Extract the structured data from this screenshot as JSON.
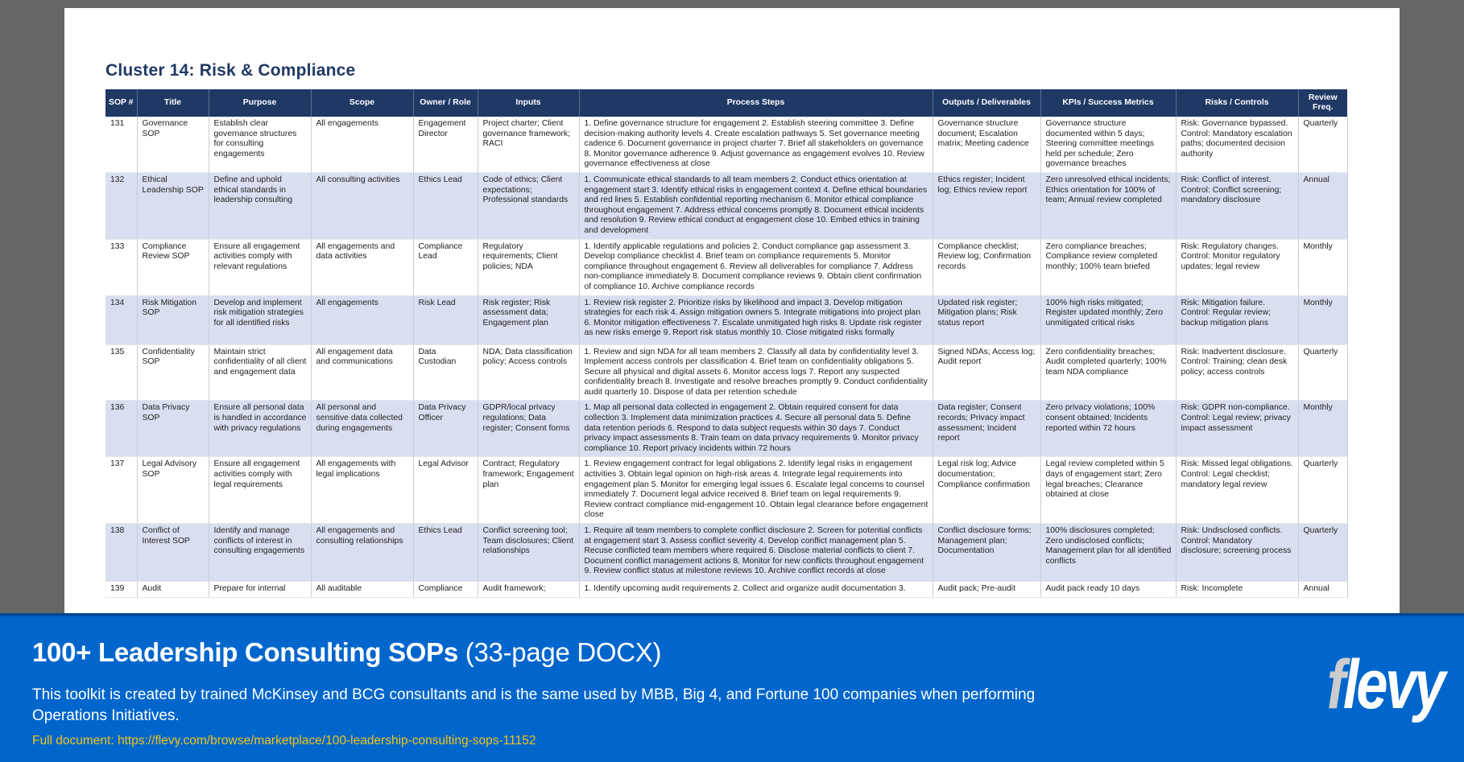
{
  "document": {
    "heading": "Cluster 14: Risk & Compliance",
    "columns": [
      "SOP #",
      "Title",
      "Purpose",
      "Scope",
      "Owner / Role",
      "Inputs",
      "Process Steps",
      "Outputs / Deliverables",
      "KPIs / Success Metrics",
      "Risks / Controls",
      "Review Freq."
    ],
    "rows": [
      {
        "sop": "131",
        "title": "Governance SOP",
        "purpose": "Establish clear governance structures for consulting engagements",
        "scope": "All engagements",
        "owner": "Engagement Director",
        "inputs": "Project charter; Client governance framework; RACI",
        "steps": "1. Define governance structure for engagement 2. Establish steering committee 3. Define decision-making authority levels 4. Create escalation pathways 5. Set governance meeting cadence 6. Document governance in project charter 7. Brief all stakeholders on governance 8. Monitor governance adherence 9. Adjust governance as engagement evolves 10. Review governance effectiveness at close",
        "outputs": "Governance structure document; Escalation matrix; Meeting cadence",
        "kpis": "Governance structure documented within 5 days; Steering committee meetings held per schedule; Zero governance breaches",
        "risks": "Risk: Governance bypassed. Control: Mandatory escalation paths; documented decision authority",
        "freq": "Quarterly"
      },
      {
        "sop": "132",
        "title": "Ethical Leadership SOP",
        "purpose": "Define and uphold ethical standards in leadership consulting",
        "scope": "All consulting activities",
        "owner": "Ethics Lead",
        "inputs": "Code of ethics; Client expectations; Professional standards",
        "steps": "1. Communicate ethical standards to all team members 2. Conduct ethics orientation at engagement start 3. Identify ethical risks in engagement context 4. Define ethical boundaries and red lines 5. Establish confidential reporting mechanism 6. Monitor ethical compliance throughout engagement 7. Address ethical concerns promptly 8. Document ethical incidents and resolution 9. Review ethical conduct at engagement close 10. Embed ethics in training and development",
        "outputs": "Ethics register; Incident log; Ethics review report",
        "kpis": "Zero unresolved ethical incidents; Ethics orientation for 100% of team; Annual review completed",
        "risks": "Risk: Conflict of interest. Control: Conflict screening; mandatory disclosure",
        "freq": "Annual"
      },
      {
        "sop": "133",
        "title": "Compliance Review SOP",
        "purpose": "Ensure all engagement activities comply with relevant regulations",
        "scope": "All engagements and data activities",
        "owner": "Compliance Lead",
        "inputs": "Regulatory requirements; Client policies; NDA",
        "steps": "1. Identify applicable regulations and policies 2. Conduct compliance gap assessment 3. Develop compliance checklist 4. Brief team on compliance requirements 5. Monitor compliance throughout engagement 6. Review all deliverables for compliance 7. Address non-compliance immediately 8. Document compliance reviews 9. Obtain client confirmation of compliance 10. Archive compliance records",
        "outputs": "Compliance checklist; Review log; Confirmation records",
        "kpis": "Zero compliance breaches; Compliance review completed monthly; 100% team briefed",
        "risks": "Risk: Regulatory changes. Control: Monitor regulatory updates; legal review",
        "freq": "Monthly"
      },
      {
        "sop": "134",
        "title": "Risk Mitigation SOP",
        "purpose": "Develop and implement risk mitigation strategies for all identified risks",
        "scope": "All engagements",
        "owner": "Risk Lead",
        "inputs": "Risk register; Risk assessment data; Engagement plan",
        "steps": "1. Review risk register 2. Prioritize risks by likelihood and impact 3. Develop mitigation strategies for each risk 4. Assign mitigation owners 5. Integrate mitigations into project plan 6. Monitor mitigation effectiveness 7. Escalate unmitigated high risks 8. Update risk register as new risks emerge 9. Report risk status monthly 10. Close mitigated risks formally",
        "outputs": "Updated risk register; Mitigation plans; Risk status report",
        "kpis": "100% high risks mitigated; Register updated monthly; Zero unmitigated critical risks",
        "risks": "Risk: Mitigation failure. Control: Regular review; backup mitigation plans",
        "freq": "Monthly"
      },
      {
        "sop": "135",
        "title": "Confidentiality SOP",
        "purpose": "Maintain strict confidentiality of all client and engagement data",
        "scope": "All engagement data and communications",
        "owner": "Data Custodian",
        "inputs": "NDA; Data classification policy; Access controls",
        "steps": "1. Review and sign NDA for all team members 2. Classify all data by confidentiality level 3. Implement access controls per classification 4. Brief team on confidentiality obligations 5. Secure all physical and digital assets 6. Monitor access logs 7. Report any suspected confidentiality breach 8. Investigate and resolve breaches promptly 9. Conduct confidentiality audit quarterly 10. Dispose of data per retention schedule",
        "outputs": "Signed NDAs; Access log; Audit report",
        "kpis": "Zero confidentiality breaches; Audit completed quarterly; 100% team NDA compliance",
        "risks": "Risk: Inadvertent disclosure. Control: Training; clean desk policy; access controls",
        "freq": "Quarterly"
      },
      {
        "sop": "136",
        "title": "Data Privacy SOP",
        "purpose": "Ensure all personal data is handled in accordance with privacy regulations",
        "scope": "All personal and sensitive data collected during engagements",
        "owner": "Data Privacy Officer",
        "inputs": "GDPR/local privacy regulations; Data register; Consent forms",
        "steps": "1. Map all personal data collected in engagement 2. Obtain required consent for data collection 3. Implement data minimization practices 4. Secure all personal data 5. Define data retention periods 6. Respond to data subject requests within 30 days 7. Conduct privacy impact assessments 8. Train team on data privacy requirements 9. Monitor privacy compliance 10. Report privacy incidents within 72 hours",
        "outputs": "Data register; Consent records; Privacy impact assessment; Incident report",
        "kpis": "Zero privacy violations; 100% consent obtained; Incidents reported within 72 hours",
        "risks": "Risk: GDPR non-compliance. Control: Legal review; privacy impact assessment",
        "freq": "Monthly"
      },
      {
        "sop": "137",
        "title": "Legal Advisory SOP",
        "purpose": "Ensure all engagement activities comply with legal requirements",
        "scope": "All engagements with legal implications",
        "owner": "Legal Advisor",
        "inputs": "Contract; Regulatory framework; Engagement plan",
        "steps": "1. Review engagement contract for legal obligations 2. Identify legal risks in engagement activities 3. Obtain legal opinion on high-risk areas 4. Integrate legal requirements into engagement plan 5. Monitor for emerging legal issues 6. Escalate legal concerns to counsel immediately 7. Document legal advice received 8. Brief team on legal requirements 9. Review contract compliance mid-engagement 10. Obtain legal clearance before engagement close",
        "outputs": "Legal risk log; Advice documentation; Compliance confirmation",
        "kpis": "Legal review completed within 5 days of engagement start; Zero legal breaches; Clearance obtained at close",
        "risks": "Risk: Missed legal obligations. Control: Legal checklist; mandatory legal review",
        "freq": "Quarterly"
      },
      {
        "sop": "138",
        "title": "Conflict of Interest SOP",
        "purpose": "Identify and manage conflicts of interest in consulting engagements",
        "scope": "All engagements and consulting relationships",
        "owner": "Ethics Lead",
        "inputs": "Conflict screening tool; Team disclosures; Client relationships",
        "steps": "1. Require all team members to complete conflict disclosure 2. Screen for potential conflicts at engagement start 3. Assess conflict severity 4. Develop conflict management plan 5. Recuse conflicted team members where required 6. Disclose material conflicts to client 7. Document conflict management actions 8. Monitor for new conflicts throughout engagement 9. Review conflict status at milestone reviews 10. Archive conflict records at close",
        "outputs": "Conflict disclosure forms; Management plan; Documentation",
        "kpis": "100% disclosures completed; Zero undisclosed conflicts; Management plan for all identified conflicts",
        "risks": "Risk: Undisclosed conflicts. Control: Mandatory disclosure; screening process",
        "freq": "Quarterly"
      },
      {
        "sop": "139",
        "title": "Audit",
        "purpose": "Prepare for internal",
        "scope": "All auditable",
        "owner": "Compliance",
        "inputs": "Audit framework;",
        "steps": "1. Identify upcoming audit requirements 2. Collect and organize audit documentation 3.",
        "outputs": "Audit pack; Pre-audit",
        "kpis": "Audit pack ready 10 days",
        "risks": "Risk: Incomplete",
        "freq": "Annual"
      }
    ]
  },
  "banner": {
    "title_bold": "100+ Leadership Consulting SOPs",
    "title_light": " (33-page DOCX)",
    "description": "This toolkit is created by trained McKinsey and BCG consultants and is the same used by MBB, Big 4, and Fortune 100 companies when performing Operations Initiatives.",
    "link_text": "Full document: https://flevy.com/browse/marketplace/100-leadership-consulting-sops-11152",
    "logo_f": "f",
    "logo_rest": "levy"
  },
  "colors": {
    "header_navy": "#1f3864",
    "alt_row": "#d9dff0",
    "banner_blue": "#0066cc",
    "link_yellow": "#f0c419",
    "background_gray": "#666666"
  }
}
